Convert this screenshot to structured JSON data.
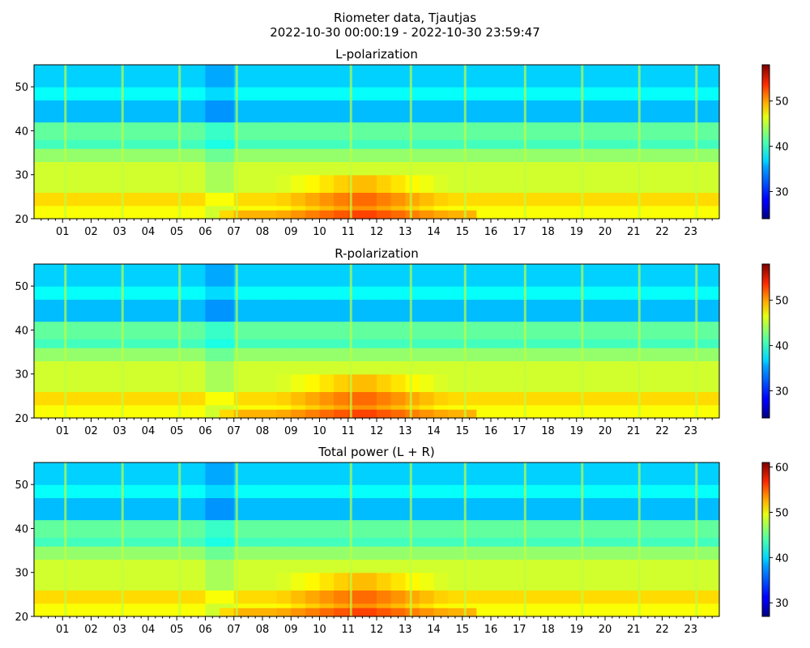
{
  "figure": {
    "title_line1": "Riometer data, Tjautjas",
    "title_line2": "2022-10-30 00:00:19 - 2022-10-30 23:59:47"
  },
  "chart_data": [
    {
      "type": "heatmap",
      "title": "L-polarization",
      "x_tick_labels": [
        "01",
        "02",
        "03",
        "04",
        "05",
        "06",
        "07",
        "08",
        "09",
        "10",
        "11",
        "12",
        "13",
        "14",
        "15",
        "16",
        "17",
        "18",
        "19",
        "20",
        "21",
        "22",
        "23"
      ],
      "x_range_hours": [
        0,
        24
      ],
      "y_ticks": [
        20,
        30,
        40,
        50
      ],
      "ylim": [
        20,
        55
      ],
      "colorbar": {
        "ticks": [
          30,
          40,
          50
        ],
        "range": [
          24,
          58
        ],
        "colormap": "jet"
      }
    },
    {
      "type": "heatmap",
      "title": "R-polarization",
      "x_tick_labels": [
        "01",
        "02",
        "03",
        "04",
        "05",
        "06",
        "07",
        "08",
        "09",
        "10",
        "11",
        "12",
        "13",
        "14",
        "15",
        "16",
        "17",
        "18",
        "19",
        "20",
        "21",
        "22",
        "23"
      ],
      "x_range_hours": [
        0,
        24
      ],
      "y_ticks": [
        20,
        30,
        40,
        50
      ],
      "ylim": [
        20,
        55
      ],
      "colorbar": {
        "ticks": [
          30,
          40,
          50
        ],
        "range": [
          24,
          58
        ],
        "colormap": "jet"
      }
    },
    {
      "type": "heatmap",
      "title": "Total power (L + R)",
      "x_tick_labels": [
        "01",
        "02",
        "03",
        "04",
        "05",
        "06",
        "07",
        "08",
        "09",
        "10",
        "11",
        "12",
        "13",
        "14",
        "15",
        "16",
        "17",
        "18",
        "19",
        "20",
        "21",
        "22",
        "23"
      ],
      "x_range_hours": [
        0,
        24
      ],
      "y_ticks": [
        20,
        30,
        40,
        50
      ],
      "ylim": [
        20,
        55
      ],
      "colorbar": {
        "ticks": [
          30,
          40,
          50,
          60
        ],
        "range": [
          27,
          61
        ],
        "colormap": "jet"
      }
    }
  ]
}
